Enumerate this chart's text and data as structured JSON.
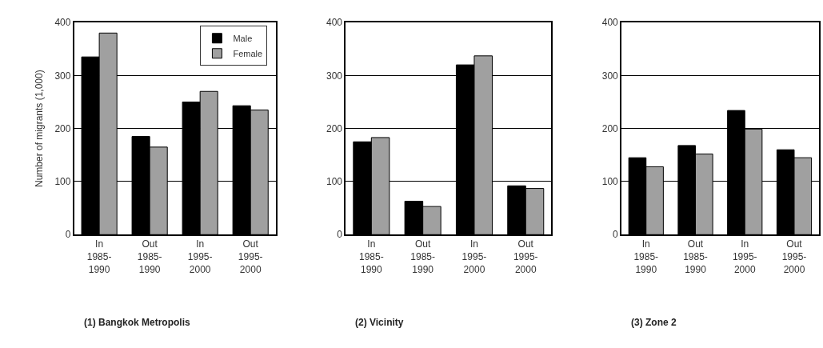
{
  "chart_data": [
    {
      "type": "bar",
      "title": "(1) Bangkok Metropolis",
      "ylabel": "Number of migrants (1,000)",
      "categories": [
        "In 1985-1990",
        "Out 1985-1990",
        "In 1995-2000",
        "Out 1995-2000"
      ],
      "series": [
        {
          "name": "Male",
          "color": "#000000",
          "values": [
            335,
            185,
            250,
            243
          ]
        },
        {
          "name": "Female",
          "color": "#a0a0a0",
          "values": [
            380,
            165,
            270,
            235
          ]
        }
      ],
      "ylim": [
        0,
        400
      ],
      "yticks": [
        0,
        100,
        200,
        300,
        400
      ],
      "grid": "y",
      "legend": "top right"
    },
    {
      "type": "bar",
      "title": "(2) Vicinity",
      "categories": [
        "In 1985-1990",
        "Out 1985-1990",
        "In 1995-2000",
        "Out 1995-2000"
      ],
      "series": [
        {
          "color": "#000000",
          "values": [
            175,
            63,
            320,
            92
          ]
        },
        {
          "color": "#a0a0a0",
          "values": [
            183,
            53,
            337,
            87
          ]
        }
      ],
      "ylim": [
        0,
        400
      ],
      "yticks": [
        0,
        100,
        200,
        300,
        400
      ],
      "grid": "y"
    },
    {
      "type": "bar",
      "title": "(3) Zone 2",
      "categories": [
        "In 1985-1990",
        "Out 1985-1990",
        "In 1995-2000",
        "Out 1995-2000"
      ],
      "series": [
        {
          "color": "#000000",
          "values": [
            145,
            168,
            234,
            160
          ]
        },
        {
          "color": "#a0a0a0",
          "values": [
            128,
            152,
            199,
            145
          ]
        }
      ],
      "ylim": [
        0,
        400
      ],
      "yticks": [
        0,
        100,
        200,
        300,
        400
      ],
      "grid": "y"
    }
  ]
}
